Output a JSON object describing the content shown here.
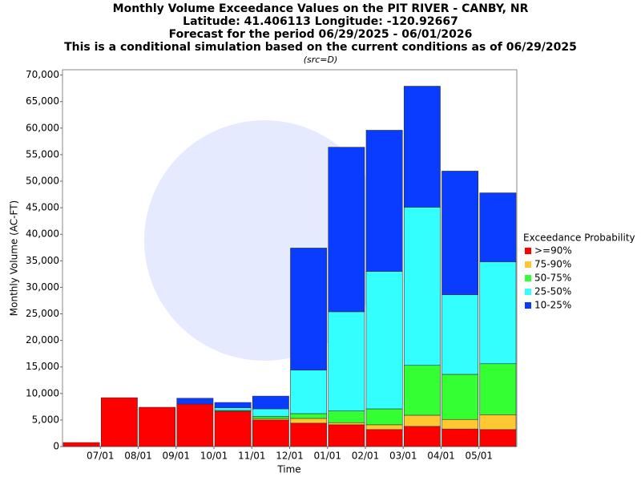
{
  "chart_data": {
    "type": "stacked_bar",
    "title": [
      "Monthly Volume Exceedance Values on the PIT RIVER - CANBY, NR",
      "Latitude: 41.406113 Longitude: -120.92667",
      "Forecast for the period 06/29/2025 - 06/01/2026",
      "This is a conditional simulation based on the current conditions as of 06/29/2025"
    ],
    "subtitle": "(src=D)",
    "xlabel": "Time",
    "ylabel": "Monthly Volume (AC-FT)",
    "legend_title": "Exceedance Probability",
    "legend": "right",
    "categories": [
      null,
      "07/01",
      "08/01",
      "09/01",
      "10/01",
      "11/01",
      "12/01",
      "01/01",
      "02/01",
      "03/01",
      "04/01",
      "05/01"
    ],
    "series": [
      {
        "name": ">=90%",
        "color": "#ff0000",
        "values": [
          750,
          9200,
          7400,
          8000,
          6650,
          5000,
          4400,
          4100,
          3200,
          3800,
          3300,
          3200
        ]
      },
      {
        "name": "75-90%",
        "color": "#ffc832",
        "values": [
          0,
          0,
          0,
          0,
          0,
          300,
          900,
          400,
          900,
          2100,
          1800,
          2800
        ]
      },
      {
        "name": "50-75%",
        "color": "#33ff33",
        "values": [
          0,
          0,
          0,
          0,
          150,
          400,
          900,
          2200,
          3000,
          9400,
          8500,
          9600
        ]
      },
      {
        "name": "25-50%",
        "color": "#33ffff",
        "values": [
          0,
          0,
          0,
          0,
          500,
          1400,
          8200,
          18700,
          25900,
          29800,
          15000,
          19200
        ]
      },
      {
        "name": "10-25%",
        "color": "#0a3cff",
        "values": [
          0,
          0,
          0,
          1100,
          1000,
          2400,
          23000,
          31000,
          26600,
          22800,
          23300,
          13000
        ]
      }
    ],
    "ylim": [
      0,
      71000
    ],
    "yticks": [
      0,
      {
        "value": 5000,
        "label": "5,000"
      },
      {
        "value": 10000,
        "label": "10,000"
      },
      {
        "value": 15000,
        "label": "15,000"
      },
      {
        "value": 20000,
        "label": "20,000"
      },
      {
        "value": 25000,
        "label": "25,000"
      },
      {
        "value": 30000,
        "label": "30,000"
      },
      {
        "value": 35000,
        "label": "35,000"
      },
      {
        "value": 40000,
        "label": "40,000"
      },
      {
        "value": 45000,
        "label": "45,000"
      },
      {
        "value": 50000,
        "label": "50,000"
      },
      {
        "value": 55000,
        "label": "55,000"
      },
      {
        "value": 60000,
        "label": "60,000"
      },
      {
        "value": 65000,
        "label": "65,000"
      },
      {
        "value": 70000,
        "label": "70,000"
      }
    ]
  }
}
